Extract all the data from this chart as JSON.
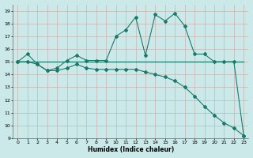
{
  "xlabel": "Humidex (Indice chaleur)",
  "xlim": [
    -0.5,
    23.5
  ],
  "ylim": [
    9,
    19.5
  ],
  "yticks": [
    9,
    10,
    11,
    12,
    13,
    14,
    15,
    16,
    17,
    18,
    19
  ],
  "xticks": [
    0,
    1,
    2,
    3,
    4,
    5,
    6,
    7,
    8,
    9,
    10,
    11,
    12,
    13,
    14,
    15,
    16,
    17,
    18,
    19,
    20,
    21,
    22,
    23
  ],
  "bg_color": "#cce9e9",
  "grid_color": "#aacfcf",
  "line_color": "#1a7a6a",
  "flat_line_x": [
    0,
    23
  ],
  "flat_line_y": [
    15.0,
    15.0
  ],
  "peak_line_x": [
    0,
    1,
    2,
    3,
    4,
    5,
    6,
    7,
    8,
    9,
    10,
    11,
    12,
    13,
    14,
    15,
    16,
    17,
    18,
    19,
    20,
    21,
    22,
    23
  ],
  "peak_line_y": [
    15.0,
    15.6,
    14.8,
    14.3,
    14.5,
    15.1,
    15.5,
    15.1,
    15.1,
    15.1,
    17.0,
    17.5,
    18.5,
    15.5,
    18.7,
    18.2,
    18.8,
    17.8,
    15.6,
    15.6,
    15.0,
    15.0,
    15.0,
    9.2
  ],
  "diag_line_x": [
    0,
    1,
    2,
    3,
    4,
    5,
    6,
    7,
    8,
    9,
    10,
    11,
    12,
    13,
    14,
    15,
    16,
    17,
    18,
    19,
    20,
    21,
    22,
    23
  ],
  "diag_line_y": [
    15.0,
    15.0,
    14.8,
    14.3,
    14.3,
    14.5,
    14.8,
    14.5,
    14.4,
    14.4,
    14.4,
    14.4,
    14.4,
    14.2,
    14.0,
    13.8,
    13.5,
    13.0,
    12.3,
    11.5,
    10.8,
    10.2,
    9.8,
    9.2
  ]
}
